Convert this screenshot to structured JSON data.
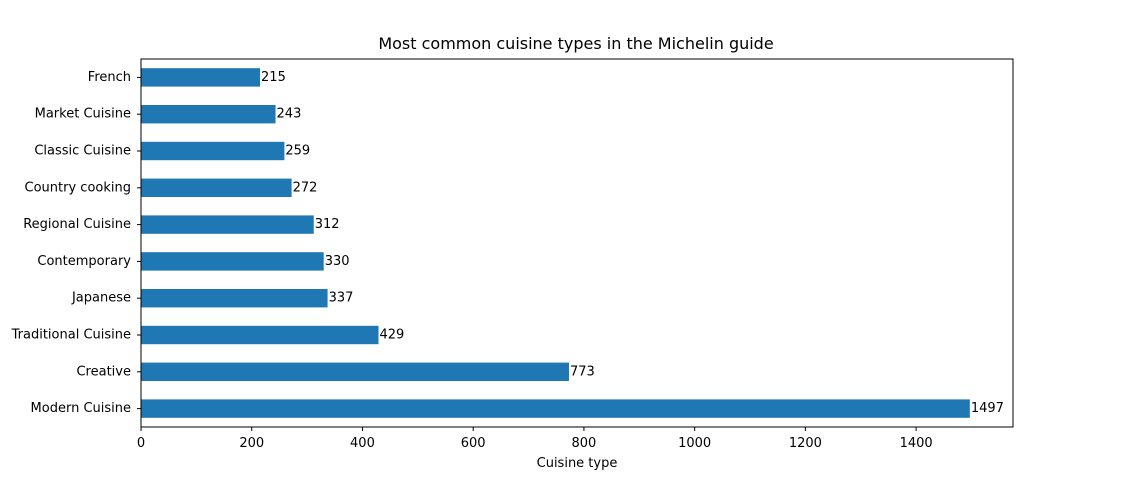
{
  "chart_data": {
    "type": "bar",
    "orientation": "horizontal",
    "title": "Most common cuisine types in the Michelin guide",
    "xlabel": "Cuisine type",
    "ylabel": "",
    "categories": [
      "French",
      "Market Cuisine",
      "Classic Cuisine",
      "Country cooking",
      "Regional Cuisine",
      "Contemporary",
      "Japanese",
      "Traditional Cuisine",
      "Creative",
      "Modern Cuisine"
    ],
    "values": [
      215,
      243,
      259,
      272,
      312,
      330,
      337,
      429,
      773,
      1497
    ],
    "xlim": [
      0,
      1575
    ],
    "xticks": [
      0,
      200,
      400,
      600,
      800,
      1000,
      1200,
      1400
    ],
    "bar_color": "#1f77b4",
    "grid": false,
    "data_labels": true
  }
}
